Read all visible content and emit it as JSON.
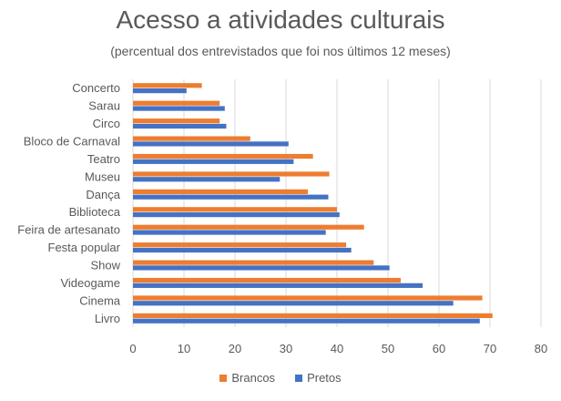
{
  "chart_data": {
    "type": "bar",
    "orientation": "horizontal",
    "title": "Acesso a atividades culturais",
    "subtitle": "(percentual dos entrevistados que foi nos últimos 12 meses)",
    "categories": [
      "Concerto",
      "Sarau",
      "Circo",
      "Bloco de Carnaval",
      "Teatro",
      "Museu",
      "Dança",
      "Biblioteca",
      "Feira de artesanato",
      "Festa popular",
      "Show",
      "Videogame",
      "Cinema",
      "Livro"
    ],
    "series": [
      {
        "name": "Brancos",
        "color": "#ED7D31",
        "values": [
          13.5,
          17,
          17,
          23,
          35.3,
          38.5,
          34.3,
          40,
          45.3,
          41.8,
          47.2,
          52.5,
          68.5,
          70.5
        ]
      },
      {
        "name": "Pretos",
        "color": "#4472C4",
        "values": [
          10.5,
          18,
          18.3,
          30.5,
          31.5,
          28.8,
          38.3,
          40.5,
          37.8,
          42.8,
          50.3,
          56.8,
          62.8,
          68
        ]
      }
    ],
    "x_ticks": [
      "0",
      "10",
      "20",
      "30",
      "40",
      "50",
      "60",
      "70",
      "80"
    ],
    "xlim": [
      0,
      80
    ],
    "grid": true,
    "legend_position": "bottom"
  }
}
